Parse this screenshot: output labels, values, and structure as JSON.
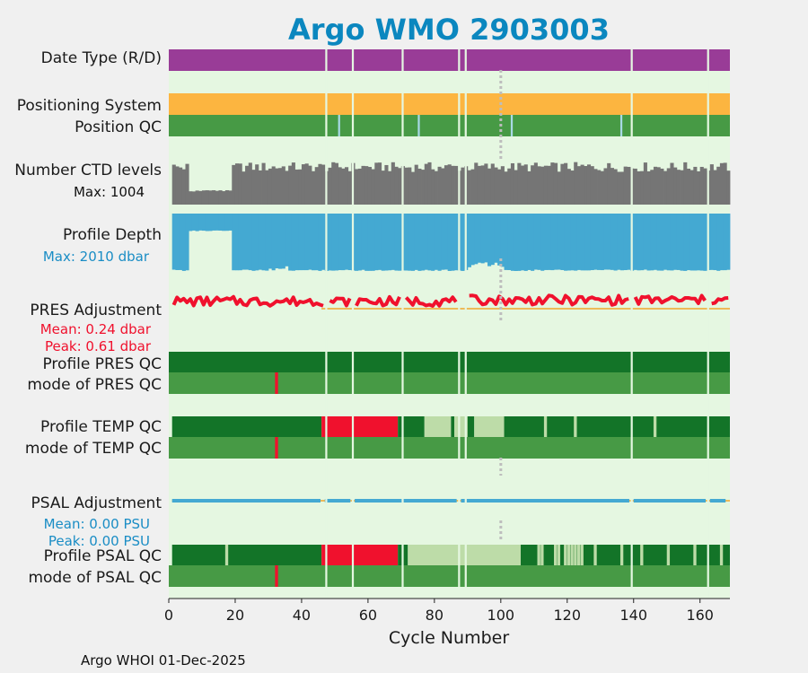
{
  "chart_data": {
    "type": "bar",
    "title": "Argo WMO 2903003",
    "xlabel": "Cycle Number",
    "xlim": [
      0,
      169
    ],
    "xticks": [
      0,
      20,
      40,
      60,
      80,
      100,
      120,
      140,
      160
    ],
    "footer": "Argo WHOI 01-Dec-2025",
    "marker_cycle": 100,
    "rows": [
      {
        "key": "datetype",
        "label": "Date Type (R/D)"
      },
      {
        "key": "possys",
        "label": "Positioning System"
      },
      {
        "key": "posqc",
        "label": "Position QC"
      },
      {
        "key": "nlev",
        "label": "Number CTD levels",
        "note": "Max: 1004"
      },
      {
        "key": "depth",
        "label": "Profile Depth",
        "note": "Max: 2010 dbar"
      },
      {
        "key": "presadj",
        "label": "PRES Adjustment",
        "note1": "Mean: 0.24 dbar",
        "note2": "Peak: 0.61 dbar"
      },
      {
        "key": "presqc",
        "label": "Profile PRES QC"
      },
      {
        "key": "presmode",
        "label": "mode of PRES QC"
      },
      {
        "key": "tempqc",
        "label": "Profile TEMP QC"
      },
      {
        "key": "tempmode",
        "label": "mode of TEMP QC"
      },
      {
        "key": "psaladj",
        "label": "PSAL Adjustment",
        "note1": "Mean: 0.00 PSU",
        "note2": "Peak: 0.00 PSU"
      },
      {
        "key": "psalqc",
        "label": "Profile PSAL QC"
      },
      {
        "key": "psalmode",
        "label": "mode of PSAL QC"
      }
    ],
    "missing_cycles": [
      47,
      55,
      70,
      87,
      89,
      139,
      162
    ],
    "position_qc_flag_cycles": [
      51,
      75,
      103,
      136
    ],
    "mode_qc_bad_cycle": 32,
    "temp_qc_segments": [
      {
        "from": 1,
        "to": 46,
        "grade": "A"
      },
      {
        "from": 46,
        "to": 69,
        "grade": "F"
      },
      {
        "from": 69,
        "to": 77,
        "grade": "A"
      },
      {
        "from": 77,
        "to": 85,
        "grade": "C"
      },
      {
        "from": 85,
        "to": 86,
        "grade": "A"
      },
      {
        "from": 86,
        "to": 90,
        "grade": "C"
      },
      {
        "from": 90,
        "to": 92,
        "grade": "A"
      },
      {
        "from": 92,
        "to": 101,
        "grade": "C"
      },
      {
        "from": 101,
        "to": 169,
        "grade": "A"
      }
    ],
    "temp_qc_extra_c": [
      113,
      122,
      146
    ],
    "psal_qc_segments": [
      {
        "from": 1,
        "to": 46,
        "grade": "A"
      },
      {
        "from": 46,
        "to": 69,
        "grade": "F"
      },
      {
        "from": 69,
        "to": 72,
        "grade": "A"
      },
      {
        "from": 72,
        "to": 106,
        "grade": "C"
      },
      {
        "from": 106,
        "to": 169,
        "grade": "A"
      }
    ],
    "psal_qc_extra_c": [
      17,
      111,
      112,
      116,
      117,
      119,
      120,
      121,
      122,
      123,
      124,
      128,
      136,
      142,
      150,
      158,
      166
    ],
    "psal_adj_gaps": [
      46,
      55,
      87,
      139,
      162
    ],
    "nlev_values": [],
    "depth_values": [],
    "pres_adj_values": []
  },
  "colors": {
    "background": "#f0f0f0",
    "plot_bg": "#e5f7e1",
    "datetype": "#993c97",
    "possys": "#fcb540",
    "qc_good": "#479a45",
    "qc_a": "#137428",
    "qc_c": "#bddca8",
    "qc_f": "#f0112d",
    "qc_flag": "#a9d9e6",
    "nlev": "#757575",
    "depth": "#44a9d2",
    "pres_adj": "#f0112d",
    "pres_zero": "#f0a52a",
    "psal_adj": "#44a9d2",
    "title": "#0b87bf",
    "note_black": "#111111",
    "note_blue": "#1a8dc5",
    "note_red": "#f0112d",
    "marker": "#bdbdbd"
  }
}
